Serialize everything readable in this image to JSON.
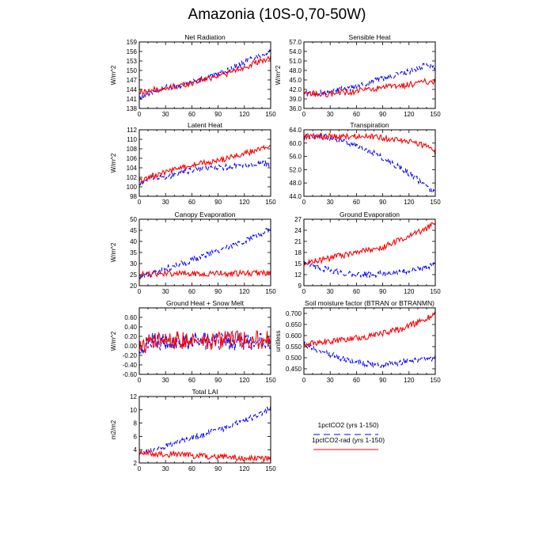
{
  "figure_title": "Amazonia (10S-0,70-50W)",
  "series_style": {
    "1pctCO2": {
      "color": "#0000ff",
      "dash": "5,3"
    },
    "1pctCO2-rad": {
      "color": "#ff0000",
      "dash": ""
    }
  },
  "legend": {
    "entries": [
      {
        "label": "1pctCO2 (yrs 1-150)",
        "color": "#0000ff",
        "dashed": true
      },
      {
        "label": "1pctCO2-rad (yrs 1-150)",
        "color": "#ff0000",
        "dashed": false
      }
    ]
  },
  "chart_data": [
    {
      "type": "line",
      "title": "Net Radiation",
      "ylabel": "W/m^2",
      "xlim": [
        0,
        150
      ],
      "xticks": [
        0,
        30,
        60,
        90,
        120,
        150
      ],
      "ylim": [
        138,
        159
      ],
      "yticks": [
        "138",
        "141",
        "144",
        "147",
        "150",
        "153",
        "156",
        "159"
      ],
      "series": [
        {
          "name": "1pctCO2",
          "x": [
            0,
            10,
            20,
            30,
            40,
            50,
            60,
            70,
            80,
            90,
            100,
            110,
            120,
            130,
            140,
            150
          ],
          "values": [
            141,
            143,
            143.5,
            144.5,
            145,
            145.5,
            146.5,
            147,
            148,
            149,
            150,
            151,
            152.5,
            154,
            155,
            156
          ]
        },
        {
          "name": "1pctCO2-rad",
          "x": [
            0,
            10,
            20,
            30,
            40,
            50,
            60,
            70,
            80,
            90,
            100,
            110,
            120,
            130,
            140,
            150
          ],
          "values": [
            143,
            143.5,
            144,
            144,
            145,
            145.5,
            146,
            147,
            147.5,
            148.5,
            149,
            150,
            151,
            152,
            153,
            154
          ]
        }
      ]
    },
    {
      "type": "line",
      "title": "Sensible Heat",
      "ylabel": "W/m^2",
      "xlim": [
        0,
        150
      ],
      "xticks": [
        0,
        30,
        60,
        90,
        120,
        150
      ],
      "ylim": [
        36,
        57
      ],
      "yticks": [
        "36.0",
        "39.0",
        "42.0",
        "45.0",
        "48.0",
        "51.0",
        "54.0",
        "57.0"
      ],
      "series": [
        {
          "name": "1pctCO2",
          "x": [
            0,
            10,
            20,
            30,
            40,
            50,
            60,
            70,
            80,
            90,
            100,
            110,
            120,
            130,
            140,
            150
          ],
          "values": [
            41,
            40.5,
            41,
            41,
            42,
            42,
            43,
            43.5,
            45,
            45.5,
            46,
            47,
            47.5,
            48.5,
            50,
            49
          ]
        },
        {
          "name": "1pctCO2-rad",
          "x": [
            0,
            10,
            20,
            30,
            40,
            50,
            60,
            70,
            80,
            90,
            100,
            110,
            120,
            130,
            140,
            150
          ],
          "values": [
            40.5,
            40.5,
            40.5,
            40.5,
            41,
            41,
            41.5,
            42,
            42,
            42.5,
            43,
            43,
            43.5,
            44,
            44.5,
            44.5
          ]
        }
      ]
    },
    {
      "type": "line",
      "title": "Latent Heat",
      "ylabel": "W/m^2",
      "xlim": [
        0,
        150
      ],
      "xticks": [
        0,
        30,
        60,
        90,
        120,
        150
      ],
      "ylim": [
        98,
        112
      ],
      "yticks": [
        "98",
        "100",
        "102",
        "104",
        "106",
        "108",
        "110",
        "112"
      ],
      "series": [
        {
          "name": "1pctCO2",
          "x": [
            0,
            10,
            20,
            30,
            40,
            50,
            60,
            70,
            80,
            90,
            100,
            110,
            120,
            130,
            140,
            150
          ],
          "values": [
            100.5,
            101.5,
            102,
            102,
            102.5,
            103,
            103.5,
            103.8,
            104,
            104,
            104.2,
            104.5,
            104.5,
            104.5,
            104.8,
            105
          ]
        },
        {
          "name": "1pctCO2-rad",
          "x": [
            0,
            10,
            20,
            30,
            40,
            50,
            60,
            70,
            80,
            90,
            100,
            110,
            120,
            130,
            140,
            150
          ],
          "values": [
            101,
            102,
            102.5,
            103,
            103.5,
            104,
            104.5,
            105,
            105,
            105.5,
            106,
            106.5,
            107,
            107.5,
            108,
            109
          ]
        }
      ]
    },
    {
      "type": "line",
      "title": "Transpiration",
      "ylabel": "",
      "xlim": [
        0,
        150
      ],
      "xticks": [
        0,
        30,
        60,
        90,
        120,
        150
      ],
      "ylim": [
        44,
        64
      ],
      "yticks": [
        "44.0",
        "48.0",
        "52.0",
        "56.0",
        "60.0",
        "64.0"
      ],
      "series": [
        {
          "name": "1pctCO2",
          "x": [
            0,
            10,
            20,
            30,
            40,
            50,
            60,
            70,
            80,
            90,
            100,
            110,
            120,
            130,
            140,
            150
          ],
          "values": [
            62,
            62,
            62,
            61.5,
            61,
            60,
            59,
            58,
            57,
            55.5,
            54,
            52.5,
            51,
            49,
            47,
            45
          ]
        },
        {
          "name": "1pctCO2-rad",
          "x": [
            0,
            10,
            20,
            30,
            40,
            50,
            60,
            70,
            80,
            90,
            100,
            110,
            120,
            130,
            140,
            150
          ],
          "values": [
            62,
            62,
            62,
            62,
            62,
            62,
            62,
            62,
            61.8,
            61.5,
            61.2,
            61,
            60.5,
            60,
            59,
            57
          ]
        }
      ]
    },
    {
      "type": "line",
      "title": "Canopy Evaporation",
      "ylabel": "W/m^2",
      "xlim": [
        0,
        150
      ],
      "xticks": [
        0,
        30,
        60,
        90,
        120,
        150
      ],
      "ylim": [
        20,
        50
      ],
      "yticks": [
        "20",
        "25",
        "30",
        "35",
        "40",
        "45",
        "50"
      ],
      "series": [
        {
          "name": "1pctCO2",
          "x": [
            0,
            10,
            20,
            30,
            40,
            50,
            60,
            70,
            80,
            90,
            100,
            110,
            120,
            130,
            140,
            150
          ],
          "values": [
            24,
            25,
            26,
            27.5,
            29,
            30,
            31.5,
            33,
            34.5,
            35.5,
            37,
            38.5,
            40,
            42,
            43.5,
            45.5
          ]
        },
        {
          "name": "1pctCO2-rad",
          "x": [
            0,
            10,
            20,
            30,
            40,
            50,
            60,
            70,
            80,
            90,
            100,
            110,
            120,
            130,
            140,
            150
          ],
          "values": [
            25,
            25,
            25.5,
            25.5,
            25.5,
            25.5,
            25.5,
            25.5,
            25.5,
            25.5,
            25.5,
            25.5,
            25.5,
            25.5,
            25.5,
            25.5
          ]
        }
      ]
    },
    {
      "type": "line",
      "title": "Ground Evaporation",
      "ylabel": "",
      "xlim": [
        0,
        150
      ],
      "xticks": [
        0,
        30,
        60,
        90,
        120,
        150
      ],
      "ylim": [
        9,
        27
      ],
      "yticks": [
        "9",
        "12",
        "15",
        "18",
        "21",
        "24",
        "27"
      ],
      "series": [
        {
          "name": "1pctCO2",
          "x": [
            0,
            10,
            20,
            30,
            40,
            50,
            60,
            70,
            80,
            90,
            100,
            110,
            120,
            130,
            140,
            150
          ],
          "values": [
            15,
            14.5,
            13.8,
            13.2,
            12.8,
            12.4,
            12.1,
            12,
            12,
            12.2,
            12.5,
            12.8,
            13.2,
            13.6,
            14,
            14.5
          ]
        },
        {
          "name": "1pctCO2-rad",
          "x": [
            0,
            10,
            20,
            30,
            40,
            50,
            60,
            70,
            80,
            90,
            100,
            110,
            120,
            130,
            140,
            150
          ],
          "values": [
            15,
            15.5,
            16,
            16.5,
            17,
            17.5,
            18,
            18.5,
            19,
            19.5,
            20.5,
            21.5,
            22.5,
            23.5,
            24.5,
            26
          ]
        }
      ]
    },
    {
      "type": "line",
      "title": "Ground Heat + Snow Melt",
      "ylabel": "W/m^2",
      "xlim": [
        0,
        150
      ],
      "xticks": [
        0,
        30,
        60,
        90,
        120,
        150
      ],
      "ylim": [
        -0.6,
        0.8
      ],
      "yticks": [
        "-0.60",
        "-0.40",
        "-0.20",
        "0.00",
        "0.20",
        "0.40",
        "0.60"
      ],
      "series": [
        {
          "name": "1pctCO2",
          "x": [
            0,
            10,
            20,
            30,
            40,
            50,
            60,
            70,
            80,
            90,
            100,
            110,
            120,
            130,
            140,
            150
          ],
          "values": [
            0,
            0.05,
            0.1,
            0.1,
            0.12,
            0.1,
            0.1,
            0.1,
            0.1,
            0.1,
            0.1,
            0.1,
            0.1,
            0.1,
            0.1,
            0.1
          ]
        },
        {
          "name": "1pctCO2-rad",
          "x": [
            0,
            10,
            20,
            30,
            40,
            50,
            60,
            70,
            80,
            90,
            100,
            110,
            120,
            130,
            140,
            150
          ],
          "values": [
            0,
            0.05,
            0.1,
            0.1,
            0.12,
            0.1,
            0.12,
            0.12,
            0.12,
            0.12,
            0.12,
            0.12,
            0.12,
            0.12,
            0.12,
            0.12
          ]
        }
      ]
    },
    {
      "type": "line",
      "title": "Soil moisture factor (BTRAN or BTRANMN)",
      "ylabel": "unitless",
      "xlim": [
        0,
        150
      ],
      "xticks": [
        0,
        30,
        60,
        90,
        120,
        150
      ],
      "ylim": [
        0.425,
        0.725
      ],
      "yticks": [
        "0.450",
        "0.500",
        "0.550",
        "0.600",
        "0.650",
        "0.700"
      ],
      "series": [
        {
          "name": "1pctCO2",
          "x": [
            0,
            10,
            20,
            30,
            40,
            50,
            60,
            70,
            80,
            90,
            100,
            110,
            120,
            130,
            140,
            150
          ],
          "values": [
            0.56,
            0.545,
            0.53,
            0.515,
            0.5,
            0.49,
            0.48,
            0.475,
            0.47,
            0.47,
            0.475,
            0.48,
            0.485,
            0.49,
            0.495,
            0.5
          ]
        },
        {
          "name": "1pctCO2-rad",
          "x": [
            0,
            10,
            20,
            30,
            40,
            50,
            60,
            70,
            80,
            90,
            100,
            110,
            120,
            130,
            140,
            150
          ],
          "values": [
            0.56,
            0.565,
            0.57,
            0.575,
            0.58,
            0.585,
            0.59,
            0.595,
            0.6,
            0.61,
            0.62,
            0.63,
            0.645,
            0.66,
            0.675,
            0.7
          ]
        }
      ]
    },
    {
      "type": "line",
      "title": "Total LAI",
      "ylabel": "m2/m2",
      "xlim": [
        0,
        150
      ],
      "xticks": [
        0,
        30,
        60,
        90,
        120,
        150
      ],
      "ylim": [
        2,
        12
      ],
      "yticks": [
        "2",
        "4",
        "6",
        "8",
        "10",
        "12"
      ],
      "series": [
        {
          "name": "1pctCO2",
          "x": [
            0,
            10,
            20,
            30,
            40,
            50,
            60,
            70,
            80,
            90,
            100,
            110,
            120,
            130,
            140,
            150
          ],
          "values": [
            3.5,
            3.8,
            4.2,
            4.6,
            5,
            5.4,
            5.8,
            6.2,
            6.6,
            7,
            7.4,
            7.9,
            8.4,
            8.9,
            9.5,
            10.3
          ]
        },
        {
          "name": "1pctCO2-rad",
          "x": [
            0,
            10,
            20,
            30,
            40,
            50,
            60,
            70,
            80,
            90,
            100,
            110,
            120,
            130,
            140,
            150
          ],
          "values": [
            3.5,
            3.5,
            3.4,
            3.3,
            3.3,
            3.2,
            3.1,
            3,
            3,
            2.9,
            2.9,
            2.8,
            2.8,
            2.7,
            2.6,
            2.6
          ]
        }
      ]
    }
  ]
}
